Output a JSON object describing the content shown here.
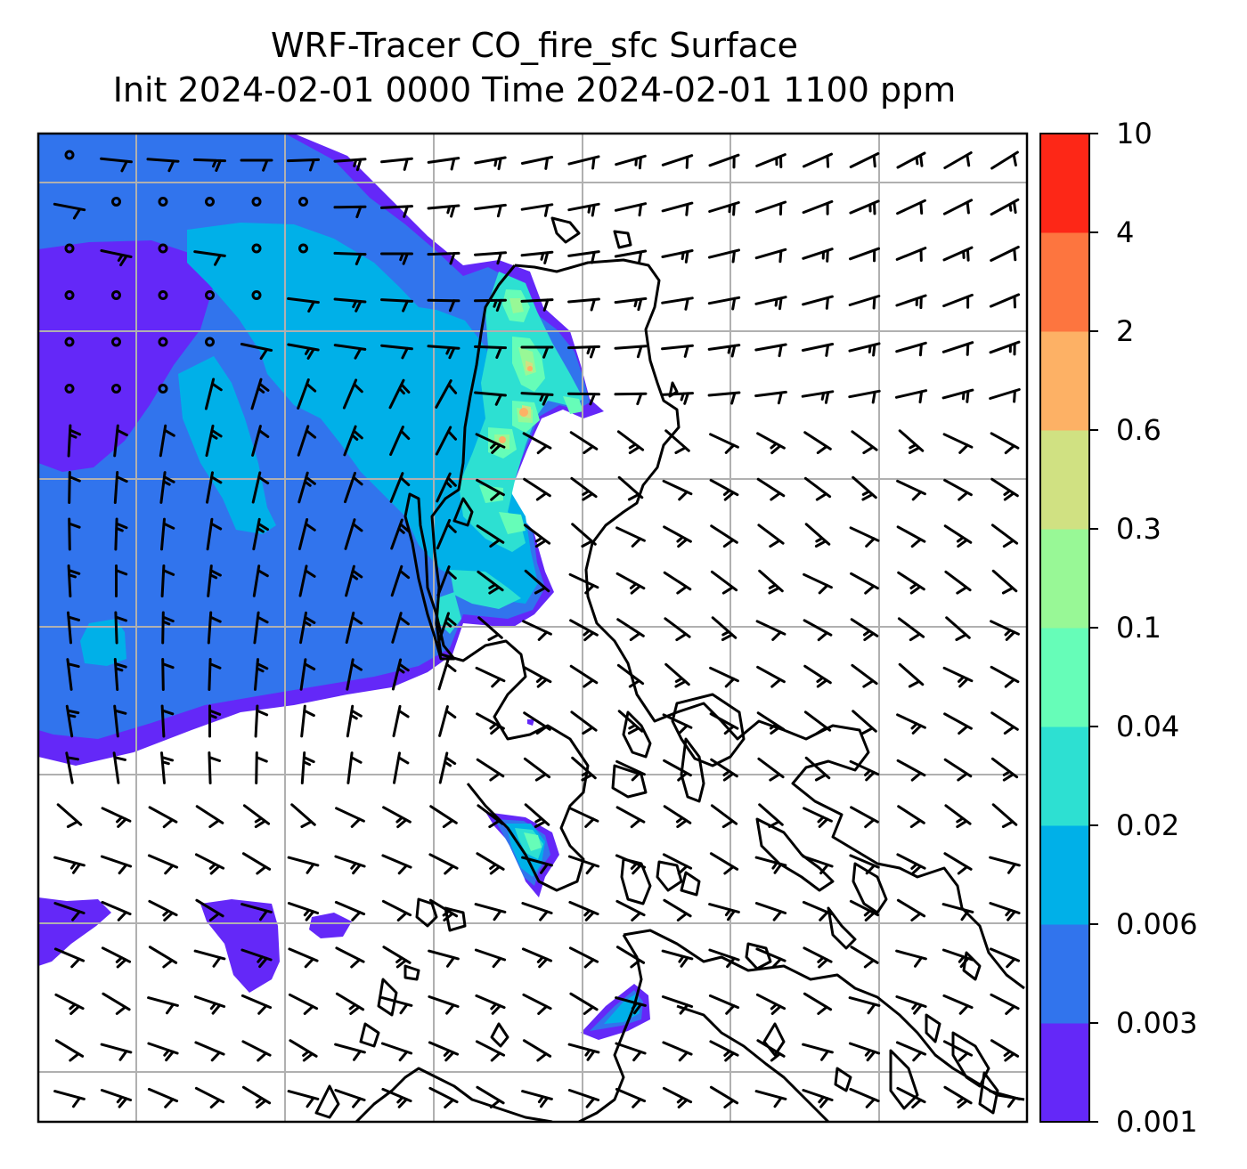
{
  "title": {
    "line1": "WRF-Tracer CO_fire_sfc Surface",
    "line2": "Init 2024-02-01 0000 Time 2024-02-01 1100 ppm"
  },
  "colorbar": {
    "levels": [
      "0.001",
      "0.003",
      "0.006",
      "0.02",
      "0.04",
      "0.1",
      "0.3",
      "0.6",
      "2",
      "4",
      "10"
    ],
    "colors": [
      "#6428f8",
      "#3174ed",
      "#00b0e8",
      "#2de0d2",
      "#66fdb8",
      "#98f896",
      "#d0e182",
      "#fdb165",
      "#fd753f",
      "#fd2717"
    ]
  },
  "map": {
    "features": [
      "co-concentration-fill",
      "wind-barbs",
      "coastlines",
      "lat-lon-grid"
    ]
  }
}
